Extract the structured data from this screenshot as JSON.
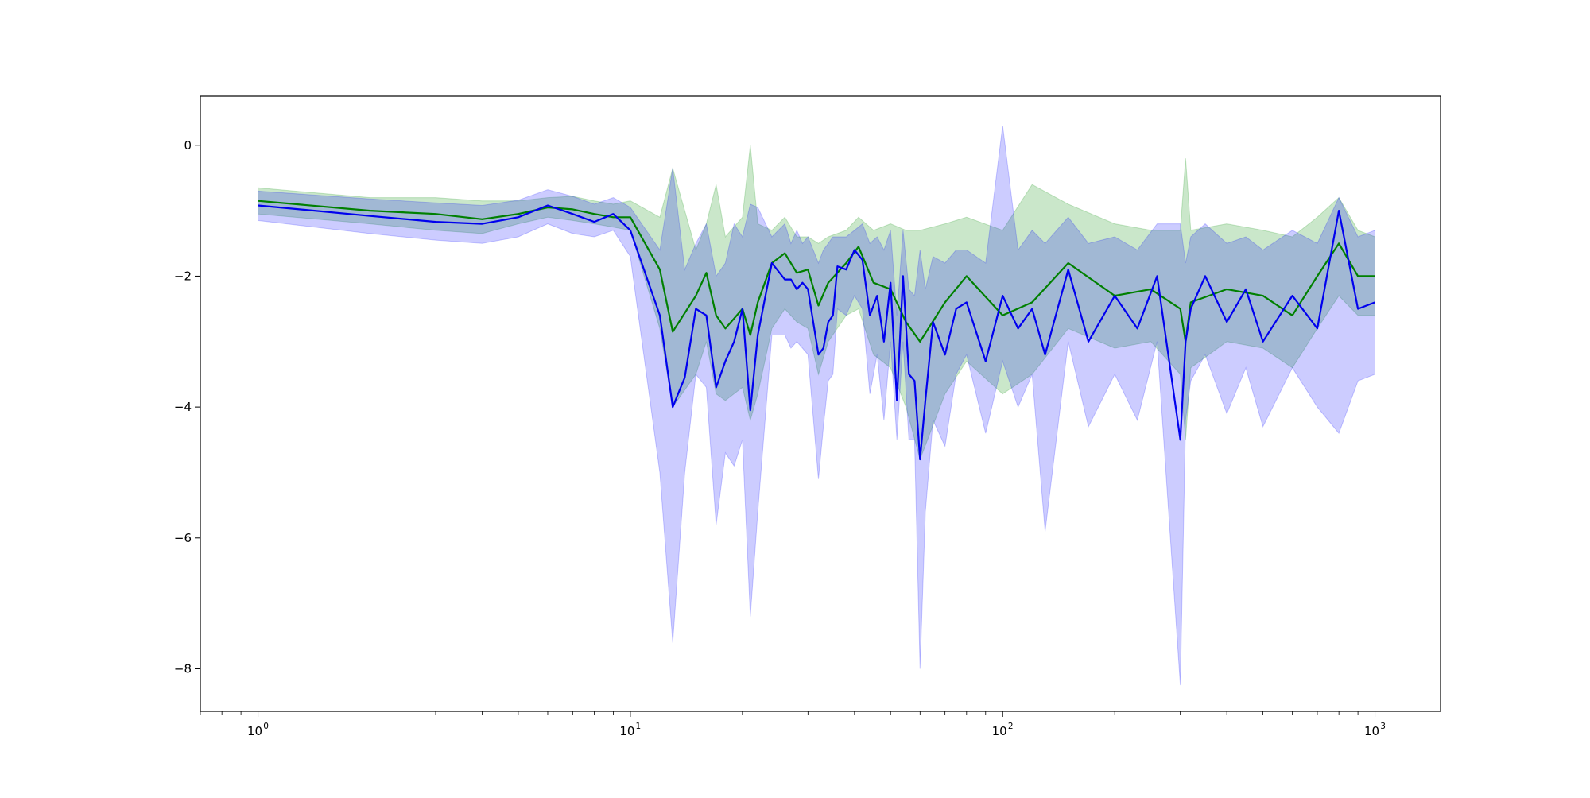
{
  "chart_data": {
    "type": "line",
    "title": "",
    "xlabel": "",
    "ylabel": "",
    "xscale": "log",
    "xlim": [
      0.7,
      1500
    ],
    "ylim": [
      -8.65,
      0.75
    ],
    "grid": false,
    "legend": "none",
    "x_ticks": [
      1,
      10,
      100,
      1000
    ],
    "x_tick_labels": [
      {
        "base": "10",
        "exp": "0"
      },
      {
        "base": "10",
        "exp": "1"
      },
      {
        "base": "10",
        "exp": "2"
      },
      {
        "base": "10",
        "exp": "3"
      }
    ],
    "y_ticks": [
      0,
      -2,
      -4,
      -6,
      -8
    ],
    "y_tick_labels": [
      "0",
      "−2",
      "−4",
      "−6",
      "−8"
    ],
    "series": [
      {
        "color": "#008000",
        "band_color": "#2ca02c",
        "band_opacity": 0.25,
        "x": [
          1,
          2,
          3,
          4,
          5,
          6,
          7,
          8,
          9,
          10,
          12,
          13,
          15,
          16,
          17,
          18,
          20,
          21,
          22,
          24,
          26,
          28,
          30,
          32,
          34,
          38,
          41,
          45,
          50,
          55,
          60,
          70,
          80,
          100,
          120,
          150,
          200,
          250,
          300,
          310,
          320,
          400,
          500,
          600,
          700,
          800,
          900,
          1000
        ],
        "y": [
          -0.85,
          -1.0,
          -1.05,
          -1.13,
          -1.05,
          -0.95,
          -0.98,
          -1.05,
          -1.1,
          -1.1,
          -1.9,
          -2.85,
          -2.3,
          -1.95,
          -2.6,
          -2.8,
          -2.5,
          -2.9,
          -2.4,
          -1.8,
          -1.65,
          -1.95,
          -1.9,
          -2.45,
          -2.1,
          -1.8,
          -1.55,
          -2.1,
          -2.2,
          -2.7,
          -3.0,
          -2.4,
          -2.0,
          -2.6,
          -2.4,
          -1.8,
          -2.3,
          -2.2,
          -2.5,
          -3.0,
          -2.4,
          -2.2,
          -2.3,
          -2.6,
          -2.0,
          -1.5,
          -2.0,
          -2.0
        ],
        "lower": [
          -1.05,
          -1.2,
          -1.3,
          -1.35,
          -1.2,
          -1.1,
          -1.15,
          -1.2,
          -1.25,
          -1.3,
          -2.8,
          -4.0,
          -3.5,
          -3.0,
          -3.8,
          -3.9,
          -3.7,
          -4.2,
          -3.8,
          -2.8,
          -2.5,
          -2.7,
          -2.8,
          -3.5,
          -3.0,
          -2.6,
          -2.5,
          -3.2,
          -3.4,
          -4.0,
          -4.8,
          -3.8,
          -3.3,
          -3.8,
          -3.5,
          -2.8,
          -3.1,
          -3.0,
          -3.5,
          -4.5,
          -3.4,
          -3.0,
          -3.1,
          -3.4,
          -2.8,
          -2.3,
          -2.6,
          -2.6
        ],
        "upper": [
          -0.65,
          -0.8,
          -0.8,
          -0.85,
          -0.85,
          -0.8,
          -0.78,
          -0.85,
          -0.9,
          -0.85,
          -1.1,
          -0.35,
          -1.6,
          -1.2,
          -0.6,
          -1.4,
          -1.1,
          0.0,
          -1.2,
          -1.3,
          -1.1,
          -1.4,
          -1.4,
          -1.5,
          -1.4,
          -1.3,
          -1.1,
          -1.3,
          -1.2,
          -1.3,
          -1.3,
          -1.2,
          -1.1,
          -1.3,
          -0.6,
          -0.9,
          -1.2,
          -1.3,
          -1.3,
          -0.2,
          -1.3,
          -1.2,
          -1.3,
          -1.4,
          -1.1,
          -0.8,
          -1.3,
          -1.4
        ]
      },
      {
        "color": "#0000ee",
        "band_color": "#0000ff",
        "band_opacity": 0.2,
        "x": [
          1,
          2,
          3,
          4,
          5,
          6,
          7,
          8,
          9,
          10,
          12,
          13,
          14,
          15,
          16,
          17,
          18,
          19,
          20,
          21,
          22,
          24,
          26,
          27,
          28,
          29,
          30,
          32,
          33,
          34,
          35,
          36,
          38,
          40,
          42,
          44,
          46,
          48,
          50,
          52,
          54,
          56,
          58,
          60,
          62,
          65,
          70,
          75,
          80,
          90,
          100,
          110,
          120,
          130,
          150,
          170,
          200,
          230,
          260,
          300,
          310,
          320,
          350,
          400,
          450,
          500,
          600,
          700,
          800,
          900,
          1000
        ],
        "y": [
          -0.92,
          -1.08,
          -1.17,
          -1.2,
          -1.1,
          -0.92,
          -1.05,
          -1.17,
          -1.05,
          -1.3,
          -2.6,
          -4.0,
          -3.55,
          -2.5,
          -2.6,
          -3.7,
          -3.3,
          -3.0,
          -2.5,
          -4.05,
          -2.9,
          -1.8,
          -2.05,
          -2.05,
          -2.2,
          -2.1,
          -2.2,
          -3.2,
          -3.1,
          -2.7,
          -2.6,
          -1.85,
          -1.9,
          -1.6,
          -1.75,
          -2.6,
          -2.3,
          -3.0,
          -2.1,
          -3.9,
          -2.0,
          -3.5,
          -3.6,
          -4.8,
          -3.9,
          -2.7,
          -3.2,
          -2.5,
          -2.4,
          -3.3,
          -2.3,
          -2.8,
          -2.5,
          -3.2,
          -1.9,
          -3.0,
          -2.3,
          -2.8,
          -2.0,
          -4.5,
          -3.0,
          -2.5,
          -2.0,
          -2.7,
          -2.2,
          -3.0,
          -2.3,
          -2.8,
          -1.0,
          -2.5,
          -2.4
        ],
        "lower": [
          -1.15,
          -1.35,
          -1.45,
          -1.5,
          -1.4,
          -1.2,
          -1.35,
          -1.4,
          -1.3,
          -1.7,
          -5.0,
          -7.6,
          -5.0,
          -3.5,
          -3.7,
          -5.8,
          -4.7,
          -4.9,
          -4.5,
          -7.2,
          -5.6,
          -2.9,
          -2.9,
          -3.1,
          -3.0,
          -3.1,
          -3.2,
          -5.1,
          -4.3,
          -3.6,
          -3.5,
          -2.5,
          -2.6,
          -2.3,
          -2.5,
          -3.8,
          -3.2,
          -4.2,
          -3.0,
          -4.5,
          -3.0,
          -4.5,
          -4.5,
          -8.0,
          -5.6,
          -4.2,
          -4.6,
          -3.5,
          -3.2,
          -4.4,
          -3.3,
          -4.0,
          -3.5,
          -5.9,
          -3.0,
          -4.3,
          -3.5,
          -4.2,
          -3.0,
          -8.25,
          -4.2,
          -3.6,
          -3.2,
          -4.1,
          -3.4,
          -4.3,
          -3.4,
          -4.0,
          -4.4,
          -3.6,
          -3.5
        ],
        "upper": [
          -0.7,
          -0.82,
          -0.88,
          -0.92,
          -0.84,
          -0.68,
          -0.78,
          -0.9,
          -0.8,
          -0.95,
          -1.6,
          -0.35,
          -1.9,
          -1.5,
          -1.2,
          -2.0,
          -1.8,
          -1.2,
          -1.4,
          -0.9,
          -0.95,
          -1.4,
          -1.2,
          -1.5,
          -1.3,
          -1.5,
          -1.4,
          -1.8,
          -1.6,
          -1.5,
          -1.4,
          -1.4,
          -1.4,
          -1.3,
          -1.2,
          -1.5,
          -1.4,
          -1.6,
          -1.3,
          -2.6,
          -1.3,
          -2.2,
          -2.3,
          -1.6,
          -2.2,
          -1.7,
          -1.8,
          -1.6,
          -1.6,
          -1.8,
          0.3,
          -1.6,
          -1.3,
          -1.5,
          -1.1,
          -1.5,
          -1.4,
          -1.6,
          -1.2,
          -1.2,
          -1.8,
          -1.4,
          -1.2,
          -1.5,
          -1.4,
          -1.6,
          -1.3,
          -1.5,
          -0.8,
          -1.4,
          -1.3
        ]
      }
    ]
  }
}
